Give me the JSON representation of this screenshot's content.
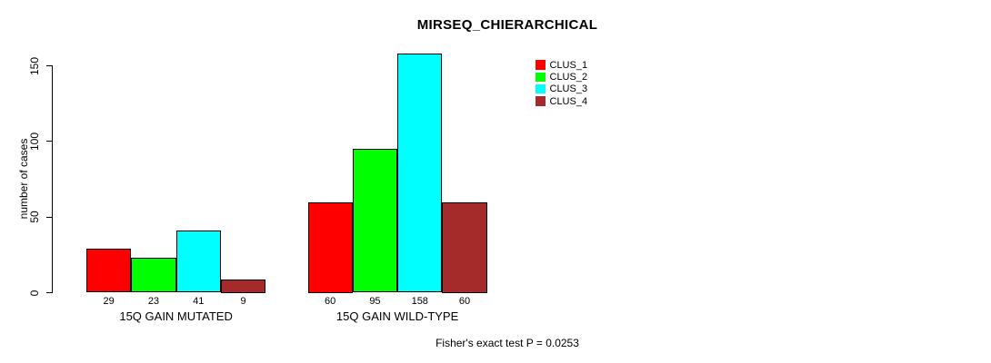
{
  "chart_data": {
    "type": "bar",
    "title": "MIRSEQ_CHIERARCHICAL",
    "ylabel": "number of cases",
    "yticks": [
      0,
      50,
      100,
      150
    ],
    "ylim": [
      0,
      150
    ],
    "grid": false,
    "legend_position": "top-right-inside",
    "categories": [
      "15Q GAIN MUTATED",
      "15Q GAIN WILD-TYPE"
    ],
    "series": [
      {
        "name": "CLUS_1",
        "color": "#ff0000",
        "values": [
          29,
          60
        ]
      },
      {
        "name": "CLUS_2",
        "color": "#00ff00",
        "values": [
          23,
          95
        ]
      },
      {
        "name": "CLUS_3",
        "color": "#00ffff",
        "values": [
          41,
          158
        ]
      },
      {
        "name": "CLUS_4",
        "color": "#a52a2a",
        "values": [
          9,
          60
        ]
      }
    ],
    "bar_value_labels": [
      [
        29,
        23,
        41,
        9
      ],
      [
        60,
        95,
        158,
        60
      ]
    ],
    "footnote": "Fisher's exact test P = 0.0253",
    "axis_color": "#000000",
    "bar_border_color": "#000000"
  }
}
